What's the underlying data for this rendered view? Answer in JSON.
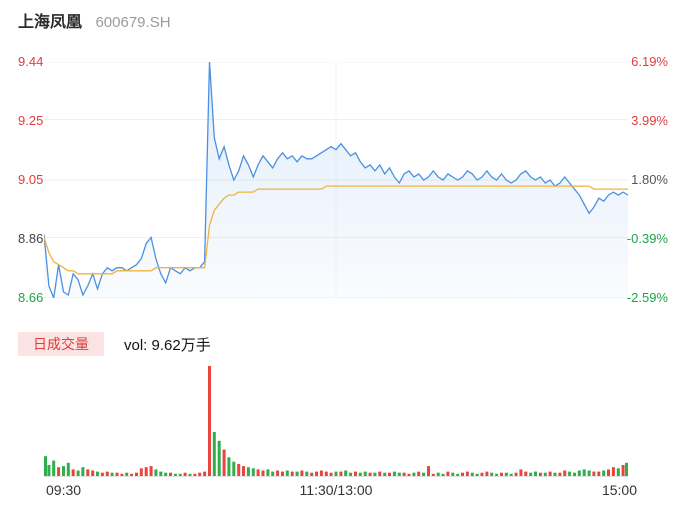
{
  "header": {
    "stock_name": "上海凤凰",
    "stock_code": "600679.SH"
  },
  "price_axis": {
    "left_ticks": [
      {
        "label": "9.44",
        "color": "#e23b3b"
      },
      {
        "label": "9.25",
        "color": "#e23b3b"
      },
      {
        "label": "9.05",
        "color": "#e23b3b"
      },
      {
        "label": "8.86",
        "color": "#444444"
      },
      {
        "label": "8.66",
        "color": "#1ea54a"
      }
    ],
    "right_ticks": [
      {
        "label": "6.19%",
        "color": "#e23b3b"
      },
      {
        "label": "3.99%",
        "color": "#e23b3b"
      },
      {
        "label": "1.80%",
        "color": "#555555"
      },
      {
        "label": "-0.39%",
        "color": "#1ea54a"
      },
      {
        "label": "-2.59%",
        "color": "#1ea54a"
      }
    ]
  },
  "volume_panel": {
    "badge_label": "日成交量",
    "volume_text": "vol: 9.62万手"
  },
  "x_axis": {
    "labels": [
      "09:30",
      "11:30/13:00",
      "15:00"
    ]
  },
  "colors": {
    "price_line": "#4a90e2",
    "avg_line": "#f3b13d",
    "up": "#e8453c",
    "down": "#2fae49",
    "grid": "#f0f0f0"
  },
  "chart_data": [
    {
      "type": "line",
      "title": "上海凤凰 600679.SH 分时走势",
      "x_axis_labels": [
        "09:30",
        "11:30/13:00",
        "15:00"
      ],
      "y_left_ticks": [
        9.44,
        9.25,
        9.05,
        8.86,
        8.66
      ],
      "y_right_ticks_pct": [
        6.19,
        3.99,
        1.8,
        -0.39,
        -2.59
      ],
      "prev_close": 8.89,
      "ylim": [
        8.66,
        9.44
      ],
      "grid": true,
      "series": [
        {
          "name": "price",
          "color": "#4a90e2",
          "values": [
            8.87,
            8.7,
            8.66,
            8.77,
            8.68,
            8.67,
            8.74,
            8.72,
            8.67,
            8.7,
            8.74,
            8.69,
            8.74,
            8.76,
            8.75,
            8.76,
            8.76,
            8.75,
            8.76,
            8.77,
            8.79,
            8.84,
            8.86,
            8.79,
            8.74,
            8.71,
            8.76,
            8.75,
            8.74,
            8.76,
            8.75,
            8.76,
            8.76,
            8.78,
            9.44,
            9.19,
            9.12,
            9.16,
            9.1,
            9.05,
            9.08,
            9.13,
            9.1,
            9.06,
            9.1,
            9.13,
            9.11,
            9.09,
            9.12,
            9.14,
            9.12,
            9.13,
            9.11,
            9.13,
            9.12,
            9.12,
            9.13,
            9.14,
            9.15,
            9.16,
            9.15,
            9.17,
            9.15,
            9.13,
            9.14,
            9.11,
            9.09,
            9.1,
            9.08,
            9.1,
            9.07,
            9.09,
            9.06,
            9.04,
            9.07,
            9.08,
            9.06,
            9.07,
            9.05,
            9.06,
            9.08,
            9.06,
            9.05,
            9.07,
            9.06,
            9.05,
            9.06,
            9.08,
            9.07,
            9.05,
            9.06,
            9.08,
            9.06,
            9.05,
            9.07,
            9.05,
            9.04,
            9.05,
            9.07,
            9.08,
            9.06,
            9.05,
            9.06,
            9.04,
            9.05,
            9.03,
            9.04,
            9.06,
            9.04,
            9.02,
            9.0,
            8.97,
            8.94,
            8.96,
            8.99,
            8.98,
            9.0,
            9.01,
            9.0,
            9.01,
            9.0
          ]
        },
        {
          "name": "avg_price",
          "color": "#f3b13d",
          "values": [
            8.86,
            8.81,
            8.78,
            8.77,
            8.76,
            8.75,
            8.75,
            8.74,
            8.74,
            8.74,
            8.74,
            8.74,
            8.74,
            8.74,
            8.74,
            8.75,
            8.75,
            8.75,
            8.75,
            8.75,
            8.75,
            8.75,
            8.75,
            8.76,
            8.76,
            8.76,
            8.76,
            8.76,
            8.76,
            8.76,
            8.76,
            8.76,
            8.76,
            8.76,
            8.9,
            8.95,
            8.97,
            8.99,
            9.0,
            9.0,
            9.01,
            9.01,
            9.01,
            9.01,
            9.02,
            9.02,
            9.02,
            9.02,
            9.02,
            9.02,
            9.02,
            9.02,
            9.02,
            9.02,
            9.02,
            9.02,
            9.02,
            9.02,
            9.03,
            9.03,
            9.03,
            9.03,
            9.03,
            9.03,
            9.03,
            9.03,
            9.03,
            9.03,
            9.03,
            9.03,
            9.03,
            9.03,
            9.03,
            9.03,
            9.03,
            9.03,
            9.03,
            9.03,
            9.03,
            9.03,
            9.03,
            9.03,
            9.03,
            9.03,
            9.03,
            9.03,
            9.03,
            9.03,
            9.03,
            9.03,
            9.03,
            9.03,
            9.03,
            9.03,
            9.03,
            9.03,
            9.03,
            9.03,
            9.03,
            9.03,
            9.03,
            9.03,
            9.03,
            9.03,
            9.03,
            9.03,
            9.03,
            9.03,
            9.03,
            9.03,
            9.03,
            9.03,
            9.03,
            9.02,
            9.02,
            9.02,
            9.02,
            9.02,
            9.02,
            9.02,
            9.02
          ]
        }
      ]
    },
    {
      "type": "bar",
      "title": "日成交量",
      "total_text": "vol: 9.62万手",
      "up_color": "#e8453c",
      "down_color": "#2fae49",
      "values": [
        18,
        10,
        14,
        8,
        9,
        12,
        6,
        5,
        8,
        6,
        5,
        4,
        3,
        4,
        3,
        3,
        2,
        3,
        2,
        3,
        7,
        8,
        9,
        6,
        4,
        3,
        3,
        2,
        2,
        3,
        2,
        2,
        3,
        4,
        100,
        40,
        32,
        24,
        17,
        13,
        11,
        9,
        8,
        7,
        6,
        5,
        6,
        4,
        5,
        4,
        5,
        4,
        4,
        5,
        4,
        3,
        4,
        5,
        4,
        3,
        4,
        4,
        5,
        3,
        4,
        3,
        4,
        3,
        3,
        4,
        3,
        3,
        4,
        3,
        3,
        2,
        3,
        4,
        3,
        9,
        2,
        3,
        2,
        4,
        3,
        2,
        3,
        4,
        3,
        2,
        3,
        4,
        3,
        2,
        3,
        3,
        2,
        3,
        6,
        4,
        3,
        4,
        3,
        3,
        4,
        3,
        3,
        5,
        4,
        3,
        5,
        6,
        5,
        4,
        4,
        5,
        6,
        8,
        7,
        10,
        12
      ]
    }
  ]
}
